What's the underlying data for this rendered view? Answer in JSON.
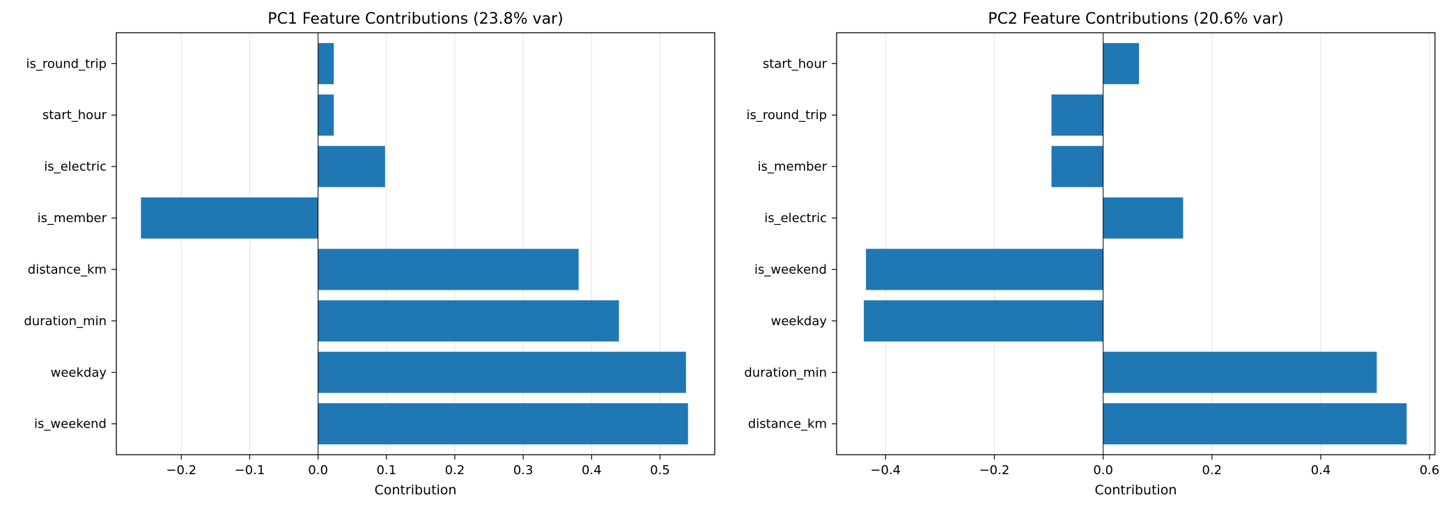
{
  "chart_data": [
    {
      "type": "bar",
      "orientation": "horizontal",
      "title": "PC1 Feature Contributions (23.8% var)",
      "xlabel": "Contribution",
      "ylabel": "",
      "xlim": [
        -0.295,
        0.58
      ],
      "xticks": [
        -0.2,
        -0.1,
        0.0,
        0.1,
        0.2,
        0.3,
        0.4,
        0.5
      ],
      "xtick_labels": [
        "−0.2",
        "−0.1",
        "0.0",
        "0.1",
        "0.2",
        "0.3",
        "0.4",
        "0.5"
      ],
      "grid": "x",
      "bar_color": "#1f77b4",
      "categories": [
        "is_weekend",
        "weekday",
        "duration_min",
        "distance_km",
        "is_member",
        "is_electric",
        "start_hour",
        "is_round_trip"
      ],
      "values": [
        0.541,
        0.538,
        0.44,
        0.381,
        -0.259,
        0.098,
        0.023,
        0.023
      ]
    },
    {
      "type": "bar",
      "orientation": "horizontal",
      "title": "PC2 Feature Contributions (20.6% var)",
      "xlabel": "Contribution",
      "ylabel": "",
      "xlim": [
        -0.49,
        0.61
      ],
      "xticks": [
        -0.4,
        -0.2,
        0.0,
        0.2,
        0.4,
        0.6
      ],
      "xtick_labels": [
        "−0.4",
        "−0.2",
        "0.0",
        "0.2",
        "0.4",
        "0.6"
      ],
      "grid": "x",
      "bar_color": "#1f77b4",
      "categories": [
        "distance_km",
        "duration_min",
        "weekday",
        "is_weekend",
        "is_electric",
        "is_member",
        "is_round_trip",
        "start_hour"
      ],
      "values": [
        0.558,
        0.503,
        -0.44,
        -0.436,
        0.147,
        -0.095,
        -0.095,
        0.066
      ]
    }
  ]
}
